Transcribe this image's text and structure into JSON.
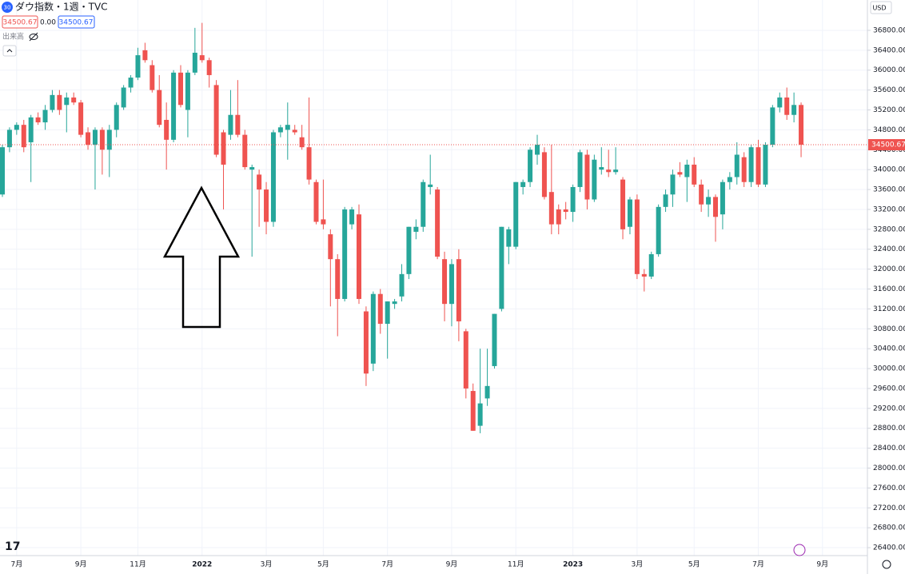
{
  "chart_data": {
    "type": "candlestick",
    "title": "ダウ指数・1週・TVC",
    "up_color": "#26a69a",
    "down_color": "#ef5350",
    "grid": true,
    "ylim": [
      26240,
      37410
    ],
    "yticks": [
      {
        "value": 26400,
        "label": "26400.00"
      },
      {
        "value": 26800,
        "label": "26800.00"
      },
      {
        "value": 27200,
        "label": "27200.00"
      },
      {
        "value": 27600,
        "label": "27600.00"
      },
      {
        "value": 28000,
        "label": "28000.00"
      },
      {
        "value": 28400,
        "label": "28400.00"
      },
      {
        "value": 28800,
        "label": "28800.00"
      },
      {
        "value": 29200,
        "label": "29200.00"
      },
      {
        "value": 29600,
        "label": "29600.00"
      },
      {
        "value": 30000,
        "label": "30000.00"
      },
      {
        "value": 30400,
        "label": "30400.00"
      },
      {
        "value": 30800,
        "label": "30800.00"
      },
      {
        "value": 31200,
        "label": "31200.00"
      },
      {
        "value": 31600,
        "label": "31600.00"
      },
      {
        "value": 32000,
        "label": "32000.00"
      },
      {
        "value": 32400,
        "label": "32400.00"
      },
      {
        "value": 32800,
        "label": "32800.00"
      },
      {
        "value": 33200,
        "label": "33200.00"
      },
      {
        "value": 33600,
        "label": "33600.00"
      },
      {
        "value": 34000,
        "label": "34000.00"
      },
      {
        "value": 34400,
        "label": "34400.00"
      },
      {
        "value": 34800,
        "label": "34800.00"
      },
      {
        "value": 35200,
        "label": "35200.00"
      },
      {
        "value": 35600,
        "label": "35600.00"
      },
      {
        "value": 36000,
        "label": "36000.00"
      },
      {
        "value": 36400,
        "label": "36400.00"
      },
      {
        "value": 36800,
        "label": "36800.00"
      }
    ],
    "categories": [
      null,
      null,
      "7月",
      null,
      null,
      null,
      null,
      null,
      null,
      null,
      null,
      "9月",
      null,
      null,
      null,
      null,
      null,
      null,
      null,
      "11月",
      null,
      null,
      null,
      null,
      null,
      null,
      null,
      null,
      "2022",
      null,
      null,
      null,
      null,
      null,
      null,
      null,
      null,
      "3月",
      null,
      null,
      null,
      null,
      null,
      null,
      null,
      "5月",
      null,
      null,
      null,
      null,
      null,
      null,
      null,
      null,
      "7月",
      null,
      null,
      null,
      null,
      null,
      null,
      null,
      null,
      "9月",
      null,
      null,
      null,
      null,
      null,
      null,
      null,
      null,
      "11月",
      null,
      null,
      null,
      null,
      null,
      null,
      null,
      "2023",
      null,
      null,
      null,
      null,
      null,
      null,
      null,
      null,
      "3月",
      null,
      null,
      null,
      null,
      null,
      null,
      null,
      "5月",
      null,
      null,
      null,
      null,
      null,
      null,
      null,
      null,
      "7月",
      null,
      null,
      null,
      null,
      null,
      null,
      null,
      null,
      "9月",
      null,
      null,
      null,
      null,
      null,
      null
    ],
    "open": [
      33500,
      34450,
      34800,
      34900,
      34550,
      35050,
      34950,
      35200,
      35500,
      35300,
      35450,
      35350,
      34750,
      34500,
      34800,
      34400,
      34800,
      35250,
      35650,
      35850,
      36400,
      36100,
      35600,
      35000,
      34600,
      35950,
      35200,
      35950,
      36300,
      36200,
      35700,
      34750,
      34700,
      35100,
      34700,
      34000,
      33900,
      33600,
      32950,
      34750,
      34800,
      34800,
      34650,
      34450,
      33750,
      33000,
      32700,
      32200,
      31400,
      32900,
      33100,
      31150,
      30100,
      31500,
      30900,
      31300,
      31450,
      31900,
      32750,
      32850,
      33650,
      33600,
      32200,
      31300,
      32200,
      30750,
      29550,
      28850,
      29400,
      30050,
      31200,
      32450,
      32450,
      33650,
      33750,
      34300,
      34350,
      33550,
      33200,
      33200,
      33150,
      33650,
      34300,
      33400,
      34000,
      34000,
      33950,
      33800,
      32850,
      33400,
      31900,
      31850,
      32300,
      33250,
      33500,
      33950,
      33850,
      34100,
      33700,
      33300,
      33450,
      33100,
      33750,
      33850,
      34250,
      33750,
      34450,
      33700,
      34500,
      35250,
      35450,
      35100,
      35300,
      null,
      null,
      null,
      null,
      null,
      null,
      null,
      null,
      null
    ],
    "high": [
      34500,
      34850,
      34950,
      35000,
      35100,
      35150,
      35300,
      35600,
      35600,
      35550,
      35550,
      35400,
      34850,
      34850,
      34850,
      34900,
      35350,
      35700,
      35900,
      36450,
      36550,
      36200,
      35900,
      35350,
      36000,
      36100,
      36000,
      36850,
      36950,
      36250,
      35800,
      34800,
      35600,
      35800,
      34800,
      34100,
      34000,
      33750,
      34800,
      34900,
      35350,
      34900,
      34900,
      35450,
      33800,
      33800,
      32800,
      32300,
      33250,
      33250,
      33300,
      31250,
      31550,
      31600,
      31350,
      31400,
      32100,
      32850,
      33000,
      33800,
      34300,
      33650,
      32350,
      32200,
      32400,
      30800,
      29700,
      30400,
      30400,
      31100,
      32850,
      32850,
      33750,
      33800,
      34450,
      34700,
      34450,
      34500,
      33300,
      33350,
      33700,
      34400,
      34400,
      34300,
      34450,
      34400,
      34450,
      33850,
      33450,
      33500,
      32000,
      32350,
      33300,
      33600,
      34000,
      34150,
      34200,
      34250,
      33800,
      33600,
      33500,
      33800,
      33950,
      34550,
      34350,
      34500,
      34600,
      34550,
      35300,
      35550,
      35650,
      35550,
      35350,
      null,
      null,
      null,
      null,
      null,
      null,
      null,
      null,
      null
    ],
    "low": [
      33450,
      34350,
      34700,
      34350,
      33750,
      34900,
      34800,
      35150,
      35100,
      34750,
      35300,
      34650,
      34400,
      33600,
      33900,
      33850,
      34650,
      35200,
      35550,
      35800,
      36150,
      35550,
      34850,
      34000,
      34550,
      35250,
      34650,
      35900,
      36150,
      35650,
      34250,
      33200,
      34600,
      34650,
      34000,
      32250,
      32850,
      32700,
      32850,
      34650,
      34200,
      34700,
      34400,
      33700,
      32900,
      32800,
      31250,
      30650,
      31350,
      32800,
      31300,
      29650,
      29950,
      30700,
      30200,
      31200,
      31350,
      31800,
      32600,
      32750,
      33500,
      32200,
      30950,
      30850,
      30550,
      29400,
      28750,
      28700,
      29250,
      30000,
      31150,
      32100,
      32400,
      33500,
      33650,
      34100,
      33400,
      32700,
      32700,
      33000,
      32950,
      33550,
      33200,
      33350,
      33900,
      33850,
      33900,
      32600,
      32700,
      31800,
      31550,
      31800,
      32250,
      33150,
      33250,
      33850,
      33350,
      33650,
      33150,
      33050,
      32550,
      32800,
      33600,
      33700,
      33650,
      33650,
      33650,
      33650,
      34450,
      35150,
      35000,
      34950,
      34250,
      null,
      null,
      null,
      null,
      null,
      null,
      null,
      null,
      null
    ],
    "close": [
      34450,
      34800,
      34900,
      34450,
      35050,
      34950,
      35200,
      35500,
      35200,
      35450,
      35350,
      34700,
      34500,
      34800,
      34400,
      34800,
      35300,
      35650,
      35850,
      36300,
      36200,
      35600,
      34900,
      34600,
      35950,
      35300,
      35950,
      36350,
      36200,
      35900,
      34300,
      34100,
      35100,
      34700,
      34050,
      34050,
      33600,
      32950,
      34750,
      34850,
      34900,
      34750,
      34450,
      33800,
      32950,
      32900,
      32200,
      31400,
      33200,
      33200,
      31400,
      29900,
      31500,
      30900,
      31350,
      31350,
      31900,
      32850,
      32850,
      33750,
      33700,
      32250,
      31300,
      32100,
      30950,
      29600,
      28750,
      29300,
      29650,
      31100,
      32850,
      32800,
      33750,
      33750,
      34400,
      34500,
      33450,
      32900,
      32900,
      33150,
      33650,
      34350,
      33400,
      34200,
      34050,
      33950,
      34000,
      32800,
      33400,
      31900,
      31850,
      32300,
      33250,
      33500,
      33900,
      33900,
      34100,
      33700,
      33300,
      33450,
      33050,
      33750,
      33850,
      34300,
      33750,
      34450,
      33700,
      34500,
      35250,
      35450,
      35100,
      35300,
      34500.67,
      null,
      null,
      null,
      null,
      null,
      null,
      null,
      null,
      null
    ]
  },
  "ui": {
    "symbol_badge": "30",
    "change": "0.00",
    "volume_label": "出来高",
    "currency": "USD"
  }
}
